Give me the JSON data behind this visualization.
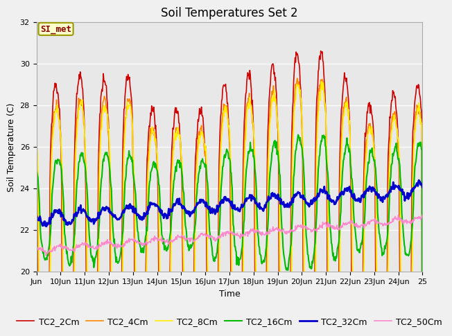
{
  "title": "Soil Temperatures Set 2",
  "xlabel": "Time",
  "ylabel": "Soil Temperature (C)",
  "annotation": "SI_met",
  "ylim": [
    20,
    32
  ],
  "yticks": [
    20,
    22,
    24,
    26,
    28,
    30,
    32
  ],
  "x_labels": [
    "Jun",
    "10Jun",
    "11Jun",
    "12Jun",
    "13Jun",
    "14Jun",
    "15Jun",
    "16Jun",
    "17Jun",
    "18Jun",
    "19Jun",
    "20Jun",
    "21Jun",
    "22Jun",
    "23Jun",
    "24Jun",
    "25"
  ],
  "series_names": [
    "TC2_2Cm",
    "TC2_4Cm",
    "TC2_8Cm",
    "TC2_16Cm",
    "TC2_32Cm",
    "TC2_50Cm"
  ],
  "series_colors": [
    "#cc0000",
    "#ff8800",
    "#ffee00",
    "#00bb00",
    "#0000cc",
    "#ff88cc"
  ],
  "series_lw": [
    1.2,
    1.2,
    1.2,
    1.5,
    2.0,
    1.2
  ],
  "bg_color": "#e8e8e8",
  "fig_bg_color": "#f0f0f0",
  "grid_color": "#ffffff",
  "title_fontsize": 12,
  "label_fontsize": 9,
  "tick_fontsize": 8,
  "legend_fontsize": 9,
  "figsize": [
    6.4,
    4.8
  ],
  "dpi": 100
}
